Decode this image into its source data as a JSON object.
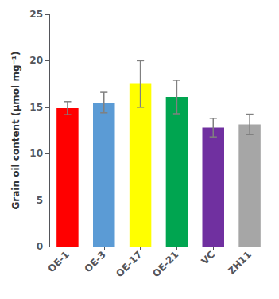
{
  "chart_data": {
    "type": "bar",
    "categories": [
      "OE-1",
      "OE-3",
      "OE-17",
      "OE-21",
      "VC",
      "ZH11"
    ],
    "values": [
      14.9,
      15.5,
      17.5,
      16.1,
      12.8,
      13.15
    ],
    "errors": [
      0.7,
      1.1,
      2.5,
      1.8,
      1.0,
      1.1
    ],
    "colors": [
      "#ff0000",
      "#5b9bd5",
      "#ffff00",
      "#00a550",
      "#7030a0",
      "#a6a6a6"
    ],
    "ylabel": "Grain oil content (μmol mg⁻¹)",
    "ylim": [
      0,
      25
    ],
    "yticks": [
      0,
      5,
      10,
      15,
      20,
      25
    ],
    "grid": false
  }
}
